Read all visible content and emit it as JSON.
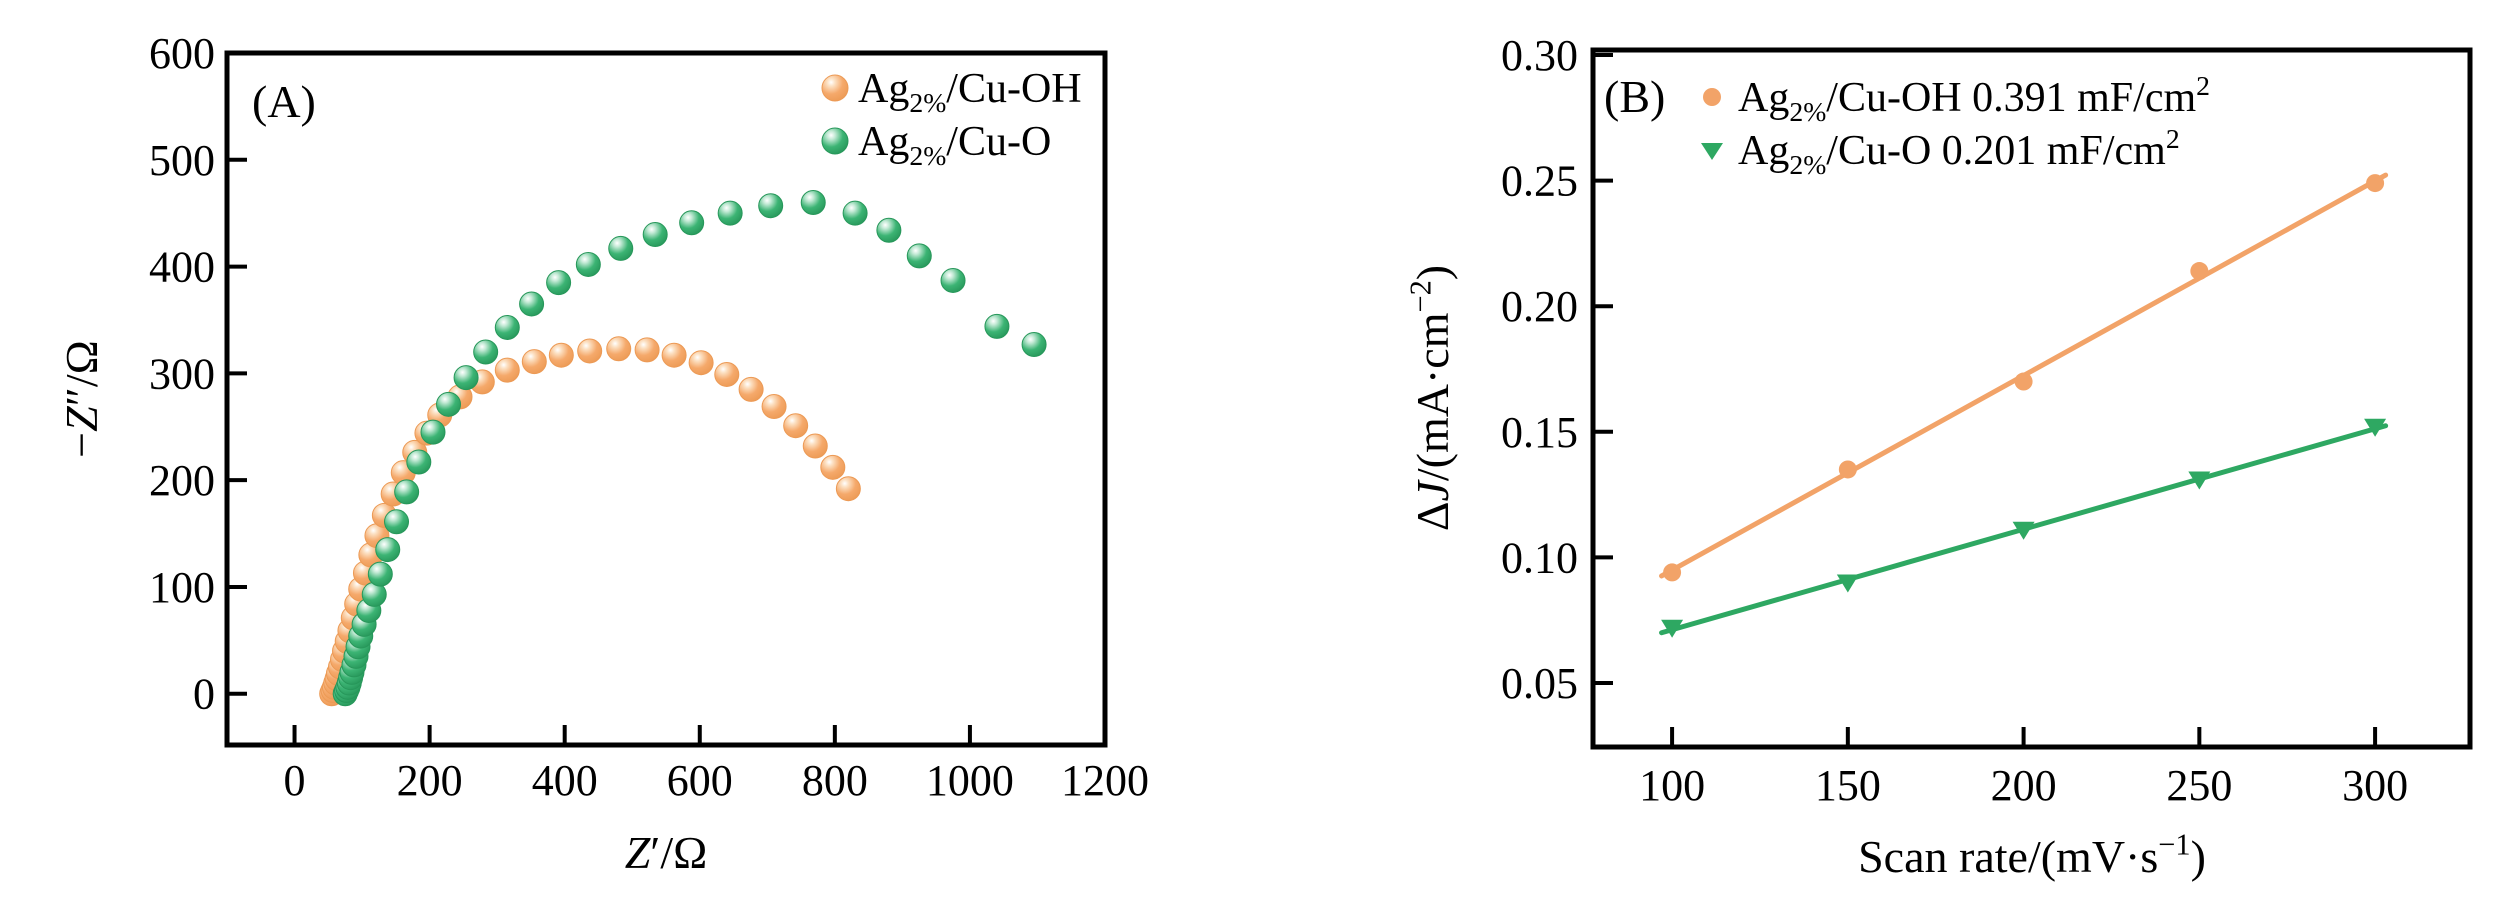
{
  "figure": {
    "background": "#ffffff",
    "axis_color": "#000000"
  },
  "chart_data": [
    {
      "id": "A",
      "type": "scatter",
      "panel_label": "(A)",
      "xlabel_parts": [
        {
          "t": "Z",
          "i": true
        },
        {
          "t": "′/Ω"
        }
      ],
      "ylabel_parts": [
        {
          "t": "−"
        },
        {
          "t": "Z",
          "i": true
        },
        {
          "t": "″/Ω"
        }
      ],
      "xlabel_text": "Z'/Ω",
      "ylabel_text": "-Z''/Ω",
      "xlim": [
        -100,
        1200
      ],
      "ylim": [
        -48,
        600
      ],
      "xticks": [
        0,
        200,
        400,
        600,
        800,
        1000,
        1200
      ],
      "yticks": [
        0,
        100,
        200,
        300,
        400,
        500,
        600
      ],
      "grid": false,
      "legend_position": "top-right-inside",
      "series": [
        {
          "key": "cu_oh",
          "name": "Ag2%/Cu-OH",
          "label_parts": [
            {
              "t": "Ag"
            },
            {
              "t": "2%",
              "sub": true
            },
            {
              "t": "/Cu-OH"
            }
          ],
          "marker": "sphere",
          "color": "#F5A96B",
          "color_light": "#FCE0C2",
          "color_dark": "#EC9A55",
          "points": [
            [
              55,
              0
            ],
            [
              57,
              3
            ],
            [
              59,
              6
            ],
            [
              61,
              10
            ],
            [
              63,
              14
            ],
            [
              65,
              19
            ],
            [
              68,
              25
            ],
            [
              71,
              32
            ],
            [
              74,
              40
            ],
            [
              78,
              49
            ],
            [
              82,
              59
            ],
            [
              87,
              71
            ],
            [
              92,
              84
            ],
            [
              98,
              98
            ],
            [
              105,
              113
            ],
            [
              113,
              130
            ],
            [
              122,
              148
            ],
            [
              133,
              167
            ],
            [
              146,
              187
            ],
            [
              161,
              207
            ],
            [
              178,
              226
            ],
            [
              196,
              244
            ],
            [
              215,
              261
            ],
            [
              245,
              278
            ],
            [
              278,
              292
            ],
            [
              315,
              303
            ],
            [
              355,
              311
            ],
            [
              395,
              317
            ],
            [
              437,
              321
            ],
            [
              480,
              323
            ],
            [
              522,
              322
            ],
            [
              562,
              317
            ],
            [
              602,
              310
            ],
            [
              640,
              299
            ],
            [
              676,
              285
            ],
            [
              710,
              269
            ],
            [
              742,
              251
            ],
            [
              771,
              232
            ],
            [
              797,
              212
            ],
            [
              820,
              192
            ]
          ]
        },
        {
          "key": "cu_o",
          "name": "Ag2%/Cu-O",
          "label_parts": [
            {
              "t": "Ag"
            },
            {
              "t": "2%",
              "sub": true
            },
            {
              "t": "/Cu-O"
            }
          ],
          "marker": "sphere",
          "color": "#3CB474",
          "color_light": "#C4EAD6",
          "color_dark": "#27975A",
          "points": [
            [
              75,
              0
            ],
            [
              77,
              3
            ],
            [
              79,
              6
            ],
            [
              81,
              10
            ],
            [
              83,
              15
            ],
            [
              85,
              20
            ],
            [
              88,
              27
            ],
            [
              91,
              35
            ],
            [
              94,
              44
            ],
            [
              98,
              54
            ],
            [
              103,
              65
            ],
            [
              110,
              78
            ],
            [
              118,
              93
            ],
            [
              127,
              112
            ],
            [
              138,
              135
            ],
            [
              151,
              161
            ],
            [
              166,
              189
            ],
            [
              184,
              217
            ],
            [
              205,
              245
            ],
            [
              228,
              271
            ],
            [
              254,
              296
            ],
            [
              283,
              320
            ],
            [
              315,
              343
            ],
            [
              351,
              365
            ],
            [
              391,
              385
            ],
            [
              435,
              402
            ],
            [
              483,
              417
            ],
            [
              534,
              430
            ],
            [
              588,
              441
            ],
            [
              645,
              450
            ],
            [
              705,
              457
            ],
            [
              768,
              460
            ],
            [
              830,
              450
            ],
            [
              880,
              434
            ],
            [
              925,
              410
            ],
            [
              975,
              387
            ],
            [
              1040,
              344
            ],
            [
              1095,
              327
            ]
          ]
        }
      ]
    },
    {
      "id": "B",
      "type": "line",
      "panel_label": "(B)",
      "xlabel_parts": [
        {
          "t": "Scan rate/(mV·s"
        },
        {
          "t": "−1",
          "sup": true
        },
        {
          "t": ")"
        }
      ],
      "ylabel_parts": [
        {
          "t": "Δ"
        },
        {
          "t": "J",
          "i": true
        },
        {
          "t": "/(mA·cm"
        },
        {
          "t": "−2",
          "sup": true
        },
        {
          "t": ")"
        }
      ],
      "xlabel_text": "Scan rate/(mV·s⁻¹)",
      "ylabel_text": "ΔJ/(mA·cm⁻²)",
      "xlim": [
        77.5,
        327
      ],
      "ylim": [
        0.0245,
        0.302
      ],
      "xticks": [
        100,
        150,
        200,
        250,
        300
      ],
      "yticks": [
        0.05,
        0.1,
        0.15,
        0.2,
        0.25,
        0.3
      ],
      "ytick_labels": [
        "0.05",
        "0.10",
        "0.15",
        "0.20",
        "0.25",
        "0.30"
      ],
      "grid": false,
      "legend_position": "top-left-inside",
      "series": [
        {
          "key": "cu_oh",
          "name": "Ag2%/Cu-OH 0.391 mF/cm2",
          "label_parts": [
            {
              "t": "Ag"
            },
            {
              "t": "2%",
              "sub": true
            },
            {
              "t": "/Cu-OH  0.391 mF/cm"
            },
            {
              "t": "2",
              "sup": true
            }
          ],
          "capacitance": "0.391 mF/cm2",
          "marker": "circle",
          "color": "#F2A368",
          "x": [
            100,
            150,
            200,
            250,
            300
          ],
          "y": [
            0.094,
            0.135,
            0.17,
            0.214,
            0.249
          ],
          "fit_line": {
            "x": [
              97,
              303
            ],
            "y": [
              0.0926,
              0.2522
            ]
          }
        },
        {
          "key": "cu_o",
          "name": "Ag2%/Cu-O 0.201 mF/cm2",
          "label_parts": [
            {
              "t": "Ag"
            },
            {
              "t": "2%",
              "sub": true
            },
            {
              "t": "/Cu-O 0.201 mF/cm"
            },
            {
              "t": "2",
              "sup": true
            }
          ],
          "capacitance": "0.201 mF/cm2",
          "marker": "triangle-down",
          "color": "#2EA862",
          "x": [
            100,
            150,
            200,
            250,
            300
          ],
          "y": [
            0.072,
            0.09,
            0.111,
            0.131,
            0.152
          ],
          "fit_line": {
            "x": [
              97,
              303
            ],
            "y": [
              0.07,
              0.1524
            ]
          }
        }
      ]
    }
  ]
}
